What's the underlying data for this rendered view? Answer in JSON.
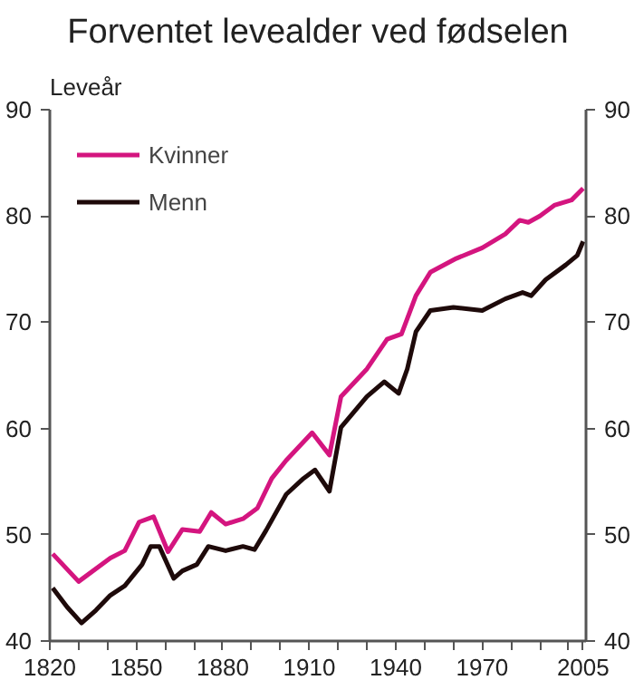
{
  "chart_data": {
    "type": "line",
    "title": "Forventet levealder ved fødselen",
    "ylabel": "Leveår",
    "xlim": [
      1820,
      2006
    ],
    "xticks": [
      1820,
      {
        "value": 1830,
        "label": null
      },
      {
        "value": 1840,
        "label": null
      },
      1850,
      {
        "value": 1860,
        "label": null
      },
      {
        "value": 1870,
        "label": null
      },
      1880,
      {
        "value": 1890,
        "label": null
      },
      {
        "value": 1900,
        "label": null
      },
      1910,
      {
        "value": 1920,
        "label": null
      },
      {
        "value": 1930,
        "label": null
      },
      1940,
      {
        "value": 1950,
        "label": null
      },
      {
        "value": 1960,
        "label": null
      },
      1970,
      {
        "value": 1980,
        "label": null
      },
      {
        "value": 1990,
        "label": null
      },
      {
        "value": 2000,
        "label": null
      },
      2005
    ],
    "ylim": [
      40,
      90
    ],
    "yticks": [
      40,
      50,
      60,
      70,
      80,
      90
    ],
    "y2lim": [
      40,
      90
    ],
    "y2ticks": [
      40,
      50,
      60,
      70,
      80,
      90
    ],
    "legend": "top left",
    "grid": false,
    "line_style": "solid",
    "series": [
      {
        "name": "Kvinner",
        "color": "#d4157f",
        "x": [
          1821,
          1830,
          1841,
          1846,
          1851,
          1856,
          1861,
          1866,
          1872,
          1876,
          1881,
          1887,
          1892,
          1897,
          1902,
          1911,
          1917,
          1921,
          1930,
          1937,
          1942,
          1947,
          1952,
          1961,
          1970,
          1978,
          1983,
          1986,
          1990,
          1995,
          2001,
          2005
        ],
        "values": [
          48.2,
          45.6,
          47.8,
          48.5,
          51.2,
          51.7,
          48.4,
          50.5,
          50.3,
          52.1,
          51.0,
          51.5,
          52.5,
          55.3,
          57.0,
          59.6,
          57.5,
          63.0,
          65.6,
          68.4,
          68.9,
          72.5,
          74.7,
          76.0,
          77.0,
          78.3,
          79.6,
          79.4,
          80.0,
          81.0,
          81.5,
          82.6
        ]
      },
      {
        "name": "Menn",
        "color": "#1e0a0a",
        "x": [
          1821,
          1826,
          1831,
          1836,
          1841,
          1846,
          1852,
          1855,
          1858,
          1863,
          1866,
          1871,
          1875,
          1881,
          1887,
          1891,
          1895,
          1902,
          1908,
          1912,
          1917,
          1921,
          1930,
          1936,
          1941,
          1944,
          1947,
          1952,
          1960,
          1970,
          1978,
          1984,
          1987,
          1992,
          1999,
          2003,
          2005
        ],
        "values": [
          45.0,
          43.2,
          41.7,
          42.9,
          44.3,
          45.2,
          47.2,
          48.9,
          48.9,
          45.9,
          46.6,
          47.2,
          48.9,
          48.5,
          48.9,
          48.6,
          50.4,
          53.8,
          55.3,
          56.1,
          54.1,
          60.1,
          63.0,
          64.4,
          63.3,
          65.6,
          69.1,
          71.1,
          71.4,
          71.1,
          72.2,
          72.8,
          72.5,
          74.0,
          75.4,
          76.3,
          77.6
        ]
      }
    ]
  }
}
